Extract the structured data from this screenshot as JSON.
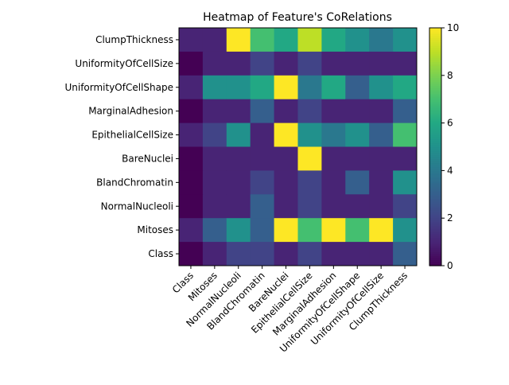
{
  "chart_data": {
    "type": "heatmap",
    "title": "Heatmap of Feature's CoRelations",
    "xlabel": "",
    "ylabel": "",
    "x_categories": [
      "Class",
      "Mitoses",
      "NormalNucleoli",
      "BlandChromatin",
      "BareNuclei",
      "EpithelialCellSize",
      "MarginalAdhesion",
      "UniformityOfCellShape",
      "UniformityOfCellSize",
      "ClumpThickness"
    ],
    "y_categories": [
      "ClumpThickness",
      "UniformityOfCellSize",
      "UniformityOfCellShape",
      "MarginalAdhesion",
      "EpithelialCellSize",
      "BareNuclei",
      "BlandChromatin",
      "NormalNucleoli",
      "Mitoses",
      "Class"
    ],
    "values": [
      [
        1,
        1,
        10,
        7,
        6,
        9,
        6,
        5,
        4,
        5
      ],
      [
        0,
        1,
        1,
        2,
        1,
        2,
        1,
        1,
        1,
        1
      ],
      [
        1,
        5,
        5,
        6,
        10,
        4,
        6,
        3,
        5,
        6
      ],
      [
        0,
        1,
        1,
        3,
        1,
        2,
        1,
        1,
        1,
        3
      ],
      [
        1,
        2,
        5,
        1,
        10,
        5,
        4,
        5,
        3,
        7
      ],
      [
        0,
        1,
        1,
        1,
        1,
        10,
        1,
        1,
        1,
        1
      ],
      [
        0,
        1,
        1,
        2,
        1,
        2,
        1,
        3,
        1,
        5
      ],
      [
        0,
        1,
        1,
        3,
        1,
        2,
        1,
        1,
        1,
        2
      ],
      [
        1,
        3,
        5,
        3,
        10,
        7,
        10,
        7,
        10,
        5
      ],
      [
        0,
        1,
        2,
        2,
        1,
        2,
        1,
        1,
        1,
        3
      ]
    ],
    "vmin": 0,
    "vmax": 10,
    "colormap": "viridis",
    "colorbar_ticks": [
      0,
      2,
      4,
      6,
      8,
      10
    ],
    "grid": false
  }
}
